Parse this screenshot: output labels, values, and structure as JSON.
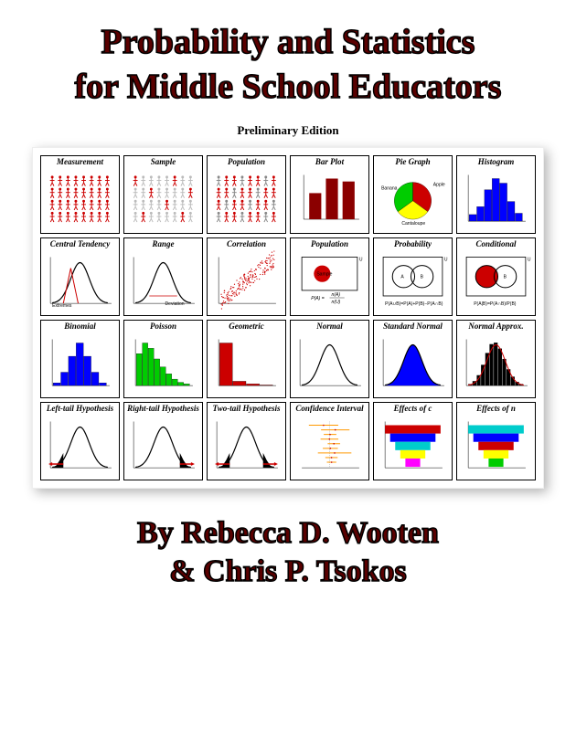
{
  "title_line1": "Probability and Statistics",
  "title_line2": "for Middle School Educators",
  "edition": "Preliminary Edition",
  "authors_line1": "By Rebecca D. Wooten",
  "authors_line2": "& Chris P. Tsokos",
  "colors": {
    "title": "#5a0000",
    "red": "#cc0000",
    "darkred": "#8b0000",
    "blue": "#0000ff",
    "green": "#00cc00",
    "yellow": "#ffff00",
    "black": "#000000",
    "gray": "#888888",
    "orange": "#ff9900",
    "cyan": "#00cccc",
    "magenta": "#ff00ff"
  },
  "cells": [
    {
      "title": "Measurement",
      "type": "figures-red"
    },
    {
      "title": "Sample",
      "type": "figures-gray"
    },
    {
      "title": "Population",
      "type": "figures-redgray"
    },
    {
      "title": "Bar Plot",
      "type": "barplot",
      "values": [
        45,
        70,
        65
      ],
      "color": "#8b0000"
    },
    {
      "title": "Pie Graph",
      "type": "pie",
      "slices": [
        {
          "label": "Apple",
          "value": 35,
          "color": "#cc0000"
        },
        {
          "label": "Banana",
          "value": 30,
          "color": "#ffff00"
        },
        {
          "label": "Cantaloupe",
          "value": 35,
          "color": "#00cc00"
        }
      ]
    },
    {
      "title": "Histogram",
      "type": "histogram",
      "values": [
        10,
        22,
        48,
        65,
        58,
        30,
        12
      ],
      "color": "#0000ff"
    },
    {
      "title": "Central Tendency",
      "type": "centraltend"
    },
    {
      "title": "Range",
      "type": "range"
    },
    {
      "title": "Correlation",
      "type": "scatter",
      "color": "#cc0000"
    },
    {
      "title": "Population",
      "type": "venn-pop",
      "formula": "P(A) = n(A)/n(U)"
    },
    {
      "title": "Probability",
      "type": "venn2"
    },
    {
      "title": "Conditional",
      "type": "venn-cond"
    },
    {
      "title": "Binomial",
      "type": "histogram",
      "values": [
        5,
        25,
        55,
        80,
        55,
        25,
        5
      ],
      "color": "#0000ff"
    },
    {
      "title": "Poisson",
      "type": "histogram",
      "values": [
        60,
        80,
        70,
        50,
        35,
        22,
        12,
        6,
        3
      ],
      "color": "#00cc00"
    },
    {
      "title": "Geometric",
      "type": "histogram",
      "values": [
        80,
        8,
        3,
        1
      ],
      "color": "#cc0000"
    },
    {
      "title": "Normal",
      "type": "normal",
      "fill": "none"
    },
    {
      "title": "Standard Normal",
      "type": "normal",
      "fill": "#0000ff"
    },
    {
      "title": "Normal Approx.",
      "type": "normalapprox"
    },
    {
      "title": "Left-tail Hypothesis",
      "type": "tail",
      "side": "left"
    },
    {
      "title": "Right-tail Hypothesis",
      "type": "tail",
      "side": "right"
    },
    {
      "title": "Two-tail Hypothesis",
      "type": "tail",
      "side": "both"
    },
    {
      "title": "Confidence Interval",
      "type": "ci"
    },
    {
      "title": "Effects of c",
      "type": "funnel",
      "colors": [
        "#cc0000",
        "#0000ff",
        "#00cccc",
        "#ffff00",
        "#ff00ff"
      ]
    },
    {
      "title": "Effects of n",
      "type": "funnel",
      "colors": [
        "#00cccc",
        "#0000ff",
        "#cc0000",
        "#ffff00",
        "#00cc00"
      ]
    }
  ]
}
